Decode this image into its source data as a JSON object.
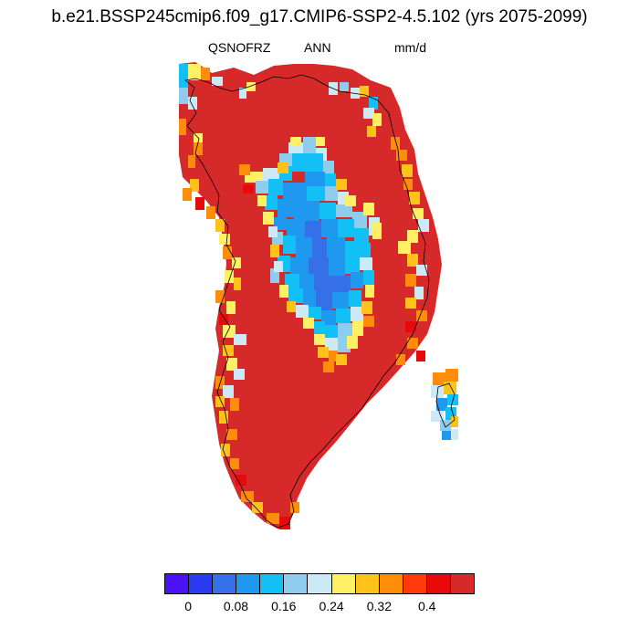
{
  "header": {
    "title": "b.e21.BSSP245cmip6.f09_g17.CMIP6-SSP2-4.5.102 (yrs 2075-2099)",
    "variable": "QSNOFRZ",
    "period": "ANN",
    "units": "mm/d"
  },
  "colorbar": {
    "colors": [
      "#4a12f5",
      "#2a3cf0",
      "#3670e8",
      "#1f98f0",
      "#12c0f5",
      "#8ecdee",
      "#cde9f5",
      "#fff066",
      "#ffc21a",
      "#ff8c0a",
      "#ff3a0a",
      "#e80a0a",
      "#d62a2a"
    ],
    "ticks": [
      {
        "label": "0",
        "boundary": 1
      },
      {
        "label": "0.08",
        "boundary": 3
      },
      {
        "label": "0.16",
        "boundary": 5
      },
      {
        "label": "0.24",
        "boundary": 7
      },
      {
        "label": "0.32",
        "boundary": 9
      },
      {
        "label": "0.4",
        "boundary": 11
      }
    ]
  },
  "map": {
    "region": "Greenland",
    "background_value_color": "#d62a2a",
    "colors": {
      "red": "#d62a2a",
      "darkred": "#e80a0a",
      "orange": "#ff8c0a",
      "gold": "#ffc21a",
      "yellow": "#fff066",
      "pale": "#cde9f5",
      "lightblue": "#8ecdee",
      "cyan": "#12c0f5",
      "skyblue": "#1f98f0",
      "blue": "#3670e8",
      "deepblue": "#2a3cf0",
      "coastline": "#000000"
    }
  }
}
